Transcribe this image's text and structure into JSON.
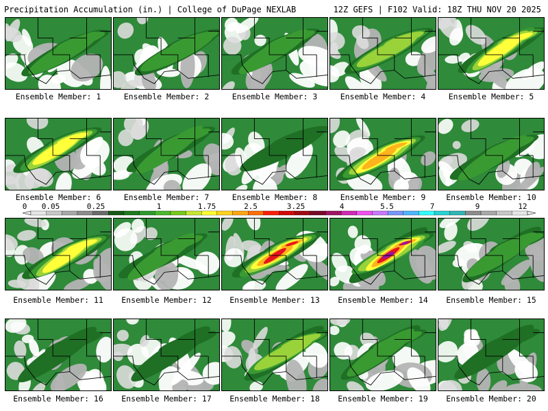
{
  "header": {
    "title_left": "Precipitation Accumulation (in.) | College of DuPage NEXLAB",
    "title_right": "12Z GEFS | F102 Valid: 18Z THU NOV 20 2025"
  },
  "members": [
    {
      "label": "Ensemble Member: 1",
      "max_level": 5
    },
    {
      "label": "Ensemble Member: 2",
      "max_level": 5
    },
    {
      "label": "Ensemble Member: 3",
      "max_level": 5
    },
    {
      "label": "Ensemble Member: 4",
      "max_level": 6
    },
    {
      "label": "Ensemble Member: 5",
      "max_level": 7
    },
    {
      "label": "Ensemble Member: 6",
      "max_level": 7
    },
    {
      "label": "Ensemble Member: 7",
      "max_level": 5
    },
    {
      "label": "Ensemble Member: 8",
      "max_level": 4
    },
    {
      "label": "Ensemble Member: 9",
      "max_level": 8
    },
    {
      "label": "Ensemble Member: 10",
      "max_level": 5
    },
    {
      "label": "Ensemble Member: 11",
      "max_level": 7
    },
    {
      "label": "Ensemble Member: 12",
      "max_level": 5
    },
    {
      "label": "Ensemble Member: 13",
      "max_level": 9
    },
    {
      "label": "Ensemble Member: 14",
      "max_level": 10
    },
    {
      "label": "Ensemble Member: 15",
      "max_level": 5
    },
    {
      "label": "Ensemble Member: 16",
      "max_level": 4
    },
    {
      "label": "Ensemble Member: 17",
      "max_level": 4
    },
    {
      "label": "Ensemble Member: 18",
      "max_level": 6
    },
    {
      "label": "Ensemble Member: 19",
      "max_level": 5
    },
    {
      "label": "Ensemble Member: 20",
      "max_level": 4
    }
  ],
  "colorbar": {
    "tick_labels": [
      "0",
      "0.05",
      "0.25",
      "1",
      "1.75",
      "2.5",
      "3.25",
      "4",
      "5.5",
      "7",
      "9",
      "12"
    ],
    "colors": [
      "#e6e6e6",
      "#c8c8c8",
      "#a8a8a8",
      "#8c8c8c",
      "#6b6b6b",
      "#145a14",
      "#1e7a1e",
      "#2f9a2f",
      "#4cb82c",
      "#78c81e",
      "#c8e632",
      "#ffff32",
      "#ffd21e",
      "#ffa514",
      "#ff6e0a",
      "#ff1e0a",
      "#d20a0a",
      "#a00a14",
      "#780a28",
      "#a01464",
      "#d228b4",
      "#f050f0",
      "#c878ff",
      "#7896ff",
      "#50b4ff",
      "#32ffff",
      "#28d2d2",
      "#32b4b4",
      "#8c8c8c",
      "#a8a8a8",
      "#c8c8c8",
      "#e6e6e6"
    ]
  }
}
